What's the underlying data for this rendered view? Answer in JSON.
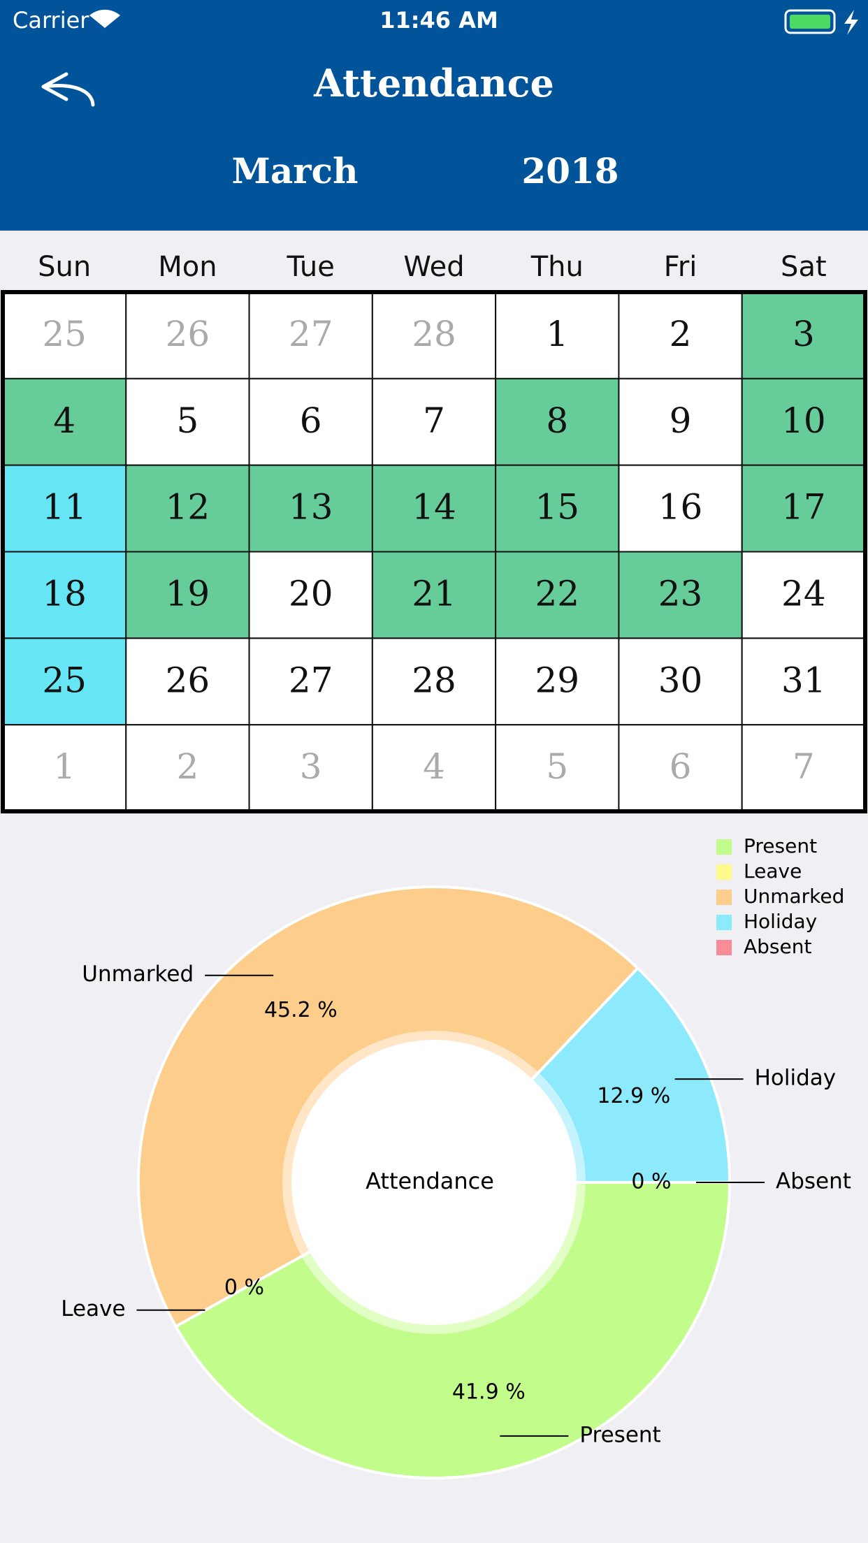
{
  "status_bar": {
    "carrier": "Carrier",
    "time": "11:46 AM"
  },
  "header": {
    "title": "Attendance",
    "month": "March",
    "year": "2018"
  },
  "calendar": {
    "weekdays": [
      "Sun",
      "Mon",
      "Tue",
      "Wed",
      "Thu",
      "Fri",
      "Sat"
    ],
    "rows": [
      [
        {
          "day": 25,
          "color": "#ffffff",
          "muted": true
        },
        {
          "day": 26,
          "color": "#ffffff",
          "muted": true
        },
        {
          "day": 27,
          "color": "#ffffff",
          "muted": true
        },
        {
          "day": 28,
          "color": "#ffffff",
          "muted": true
        },
        {
          "day": 1,
          "color": "#ffffff",
          "muted": false
        },
        {
          "day": 2,
          "color": "#ffffff",
          "muted": false
        },
        {
          "day": 3,
          "color": "#66cc99",
          "muted": false
        }
      ],
      [
        {
          "day": 4,
          "color": "#66cc99",
          "muted": false
        },
        {
          "day": 5,
          "color": "#ffffff",
          "muted": false
        },
        {
          "day": 6,
          "color": "#ffffff",
          "muted": false
        },
        {
          "day": 7,
          "color": "#ffffff",
          "muted": false
        },
        {
          "day": 8,
          "color": "#66cc99",
          "muted": false
        },
        {
          "day": 9,
          "color": "#ffffff",
          "muted": false
        },
        {
          "day": 10,
          "color": "#66cc99",
          "muted": false
        }
      ],
      [
        {
          "day": 11,
          "color": "#66e5f5",
          "muted": false
        },
        {
          "day": 12,
          "color": "#66cc99",
          "muted": false
        },
        {
          "day": 13,
          "color": "#66cc99",
          "muted": false
        },
        {
          "day": 14,
          "color": "#66cc99",
          "muted": false
        },
        {
          "day": 15,
          "color": "#66cc99",
          "muted": false
        },
        {
          "day": 16,
          "color": "#ffffff",
          "muted": false
        },
        {
          "day": 17,
          "color": "#66cc99",
          "muted": false
        }
      ],
      [
        {
          "day": 18,
          "color": "#66e5f5",
          "muted": false
        },
        {
          "day": 19,
          "color": "#66cc99",
          "muted": false
        },
        {
          "day": 20,
          "color": "#ffffff",
          "muted": false
        },
        {
          "day": 21,
          "color": "#66cc99",
          "muted": false
        },
        {
          "day": 22,
          "color": "#66cc99",
          "muted": false
        },
        {
          "day": 23,
          "color": "#66cc99",
          "muted": false
        },
        {
          "day": 24,
          "color": "#ffffff",
          "muted": false
        }
      ],
      [
        {
          "day": 25,
          "color": "#66e5f5",
          "muted": false
        },
        {
          "day": 26,
          "color": "#ffffff",
          "muted": false
        },
        {
          "day": 27,
          "color": "#ffffff",
          "muted": false
        },
        {
          "day": 28,
          "color": "#ffffff",
          "muted": false
        },
        {
          "day": 29,
          "color": "#ffffff",
          "muted": false
        },
        {
          "day": 30,
          "color": "#ffffff",
          "muted": false
        },
        {
          "day": 31,
          "color": "#ffffff",
          "muted": false
        }
      ],
      [
        {
          "day": 1,
          "color": "#ffffff",
          "muted": true
        },
        {
          "day": 2,
          "color": "#ffffff",
          "muted": true
        },
        {
          "day": 3,
          "color": "#ffffff",
          "muted": true
        },
        {
          "day": 4,
          "color": "#ffffff",
          "muted": true
        },
        {
          "day": 5,
          "color": "#ffffff",
          "muted": true
        },
        {
          "day": 6,
          "color": "#ffffff",
          "muted": true
        },
        {
          "day": 7,
          "color": "#ffffff",
          "muted": true
        }
      ]
    ]
  },
  "chart_data": {
    "type": "pie",
    "center_text": "Attendance",
    "categories": [
      "Present",
      "Leave",
      "Unmarked",
      "Holiday",
      "Absent"
    ],
    "values": [
      41.9,
      0,
      45.2,
      12.9,
      0
    ],
    "value_labels": [
      "41.9 %",
      "0 %",
      "45.2 %",
      "12.9 %",
      "0 %"
    ],
    "colors": [
      "#c2fc8a",
      "#fdf98a",
      "#fdcd8c",
      "#8de9fc",
      "#fa8c99"
    ],
    "legend": "top-right"
  }
}
